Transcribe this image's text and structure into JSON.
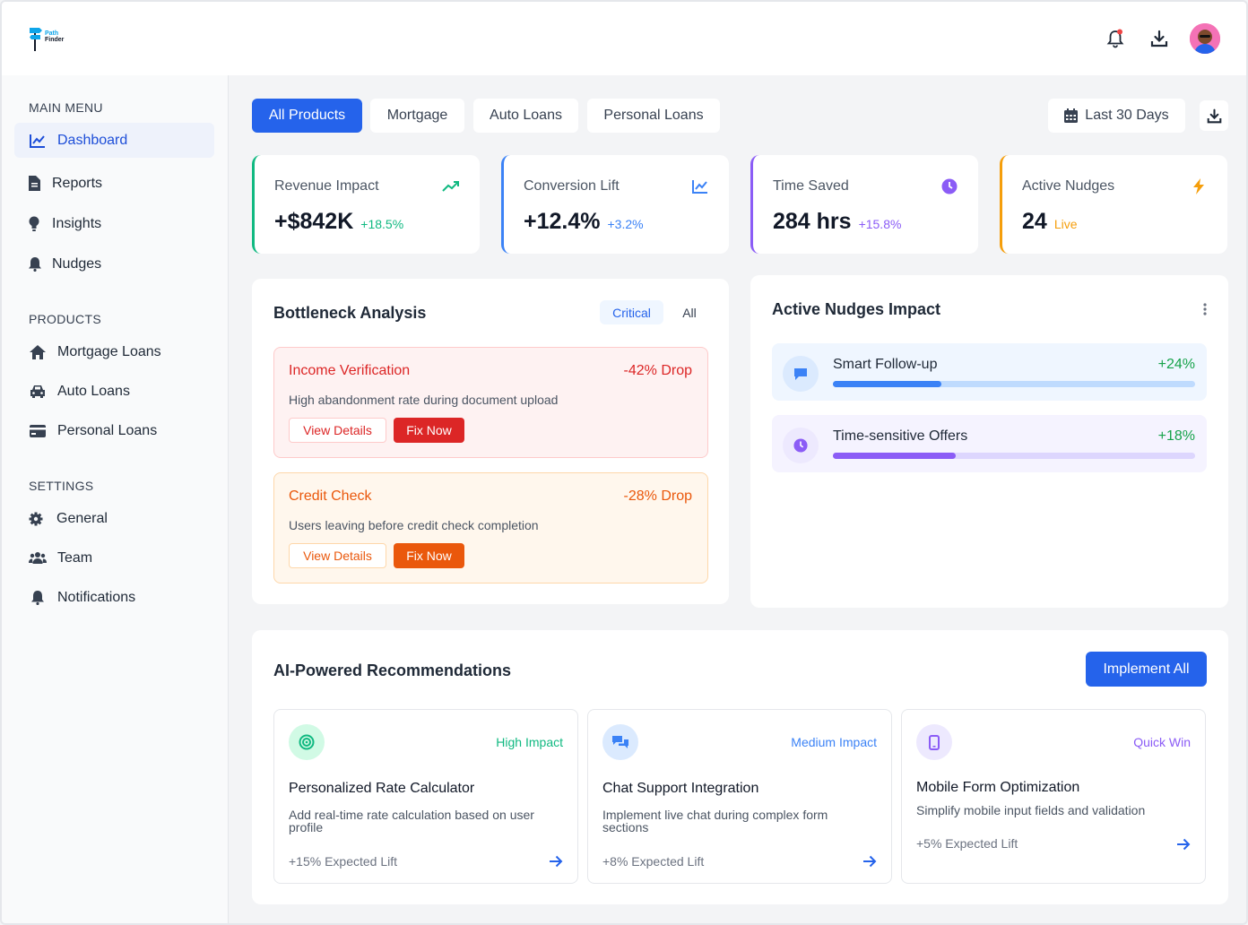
{
  "brand": {
    "line1": "Path",
    "line2": "Finder"
  },
  "header": {
    "icons": [
      "bell-icon",
      "download-icon",
      "avatar"
    ]
  },
  "sidebar": {
    "main_menu_title": "MAIN MENU",
    "main_items": [
      {
        "label": "Dashboard",
        "icon": "chart-line-icon",
        "active": true
      },
      {
        "label": "Reports",
        "icon": "file-icon"
      },
      {
        "label": "Insights",
        "icon": "lightbulb-icon"
      },
      {
        "label": "Nudges",
        "icon": "bell-icon"
      }
    ],
    "products_title": "PRODUCTS",
    "product_items": [
      {
        "label": "Mortgage Loans",
        "icon": "home-icon"
      },
      {
        "label": "Auto Loans",
        "icon": "car-icon"
      },
      {
        "label": "Personal Loans",
        "icon": "credit-card-icon"
      }
    ],
    "settings_title": "SETTINGS",
    "settings_items": [
      {
        "label": "General",
        "icon": "gear-icon"
      },
      {
        "label": "Team",
        "icon": "users-icon"
      },
      {
        "label": "Notifications",
        "icon": "bell-icon"
      }
    ]
  },
  "tabs": [
    "All Products",
    "Mortgage",
    "Auto Loans",
    "Personal Loans"
  ],
  "date_filter": "Last 30 Days",
  "kpis": [
    {
      "label": "Revenue Impact",
      "value": "+$842K",
      "delta": "+18.5%",
      "color": "#10b981",
      "icon": "trend-up-icon"
    },
    {
      "label": "Conversion Lift",
      "value": "+12.4%",
      "delta": "+3.2%",
      "color": "#3b82f6",
      "icon": "chart-line-icon"
    },
    {
      "label": "Time Saved",
      "value": "284 hrs",
      "delta": "+15.8%",
      "color": "#8b5cf6",
      "icon": "clock-icon"
    },
    {
      "label": "Active Nudges",
      "value": "24",
      "delta": "Live",
      "color": "#f59e0b",
      "icon": "bolt-icon"
    }
  ],
  "bottleneck": {
    "title": "Bottleneck Analysis",
    "filters": [
      "Critical",
      "All"
    ],
    "items": [
      {
        "title": "Income Verification",
        "drop": "-42% Drop",
        "desc": "High abandonment rate during document upload",
        "view": "View Details",
        "fix": "Fix Now"
      },
      {
        "title": "Credit Check",
        "drop": "-28% Drop",
        "desc": "Users leaving before credit check completion",
        "view": "View Details",
        "fix": "Fix Now"
      }
    ]
  },
  "nudges_impact": {
    "title": "Active Nudges Impact",
    "items": [
      {
        "name": "Smart Follow-up",
        "pct": "+24%",
        "progress": 0.3,
        "icon": "chat-icon"
      },
      {
        "name": "Time-sensitive Offers",
        "pct": "+18%",
        "progress": 0.34,
        "icon": "clock-icon"
      }
    ]
  },
  "recommendations": {
    "title": "AI-Powered Recommendations",
    "implement_label": "Implement All",
    "items": [
      {
        "tag": "High Impact",
        "title": "Personalized Rate Calculator",
        "desc": "Add real-time rate calculation based on user profile",
        "lift": "+15% Expected Lift",
        "icon": "target-icon"
      },
      {
        "tag": "Medium Impact",
        "title": "Chat Support Integration",
        "desc": "Implement live chat during complex form sections",
        "lift": "+8% Expected Lift",
        "icon": "chat-bubbles-icon"
      },
      {
        "tag": "Quick Win",
        "title": "Mobile Form Optimization",
        "desc": "Simplify mobile input fields and validation",
        "lift": "+5% Expected Lift",
        "icon": "mobile-icon"
      }
    ]
  }
}
